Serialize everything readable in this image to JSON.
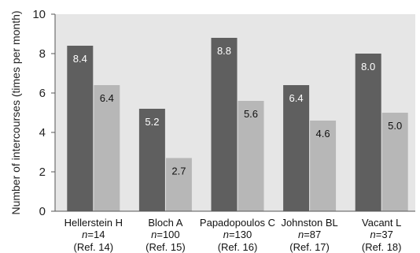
{
  "chart_data": {
    "type": "bar",
    "ylabel": "Number of intercourses (times per month)",
    "ylim": [
      0,
      10
    ],
    "yticks": [
      "0",
      "2",
      "4",
      "6",
      "8",
      "10"
    ],
    "grid": false,
    "categories": [
      {
        "name": "Hellerstein H",
        "n_label": "n",
        "n_value": "=14",
        "ref": "(Ref. 14)"
      },
      {
        "name": "Bloch A",
        "n_label": "n",
        "n_value": "=100",
        "ref": "(Ref. 15)"
      },
      {
        "name": "Papadopoulos C",
        "n_label": "n",
        "n_value": "=130",
        "ref": "(Ref. 16)"
      },
      {
        "name": "Johnston BL",
        "n_label": "n",
        "n_value": "=87",
        "ref": "(Ref. 17)"
      },
      {
        "name": "Vacant L",
        "n_label": "n",
        "n_value": "=37",
        "ref": "(Ref. 18)"
      }
    ],
    "series": [
      {
        "color": "#5f5f5f",
        "values": [
          8.4,
          5.2,
          8.8,
          6.4,
          8.0
        ],
        "labels": [
          "8.4",
          "5.2",
          "8.8",
          "6.4",
          "8.0"
        ]
      },
      {
        "color": "#b7b7b7",
        "values": [
          6.4,
          2.7,
          5.6,
          4.6,
          5.0
        ],
        "labels": [
          "6.4",
          "2.7",
          "5.6",
          "4.6",
          "5.0"
        ]
      }
    ],
    "colors": {
      "plot_background": "#e6e6e6",
      "axis": "#555555"
    }
  }
}
